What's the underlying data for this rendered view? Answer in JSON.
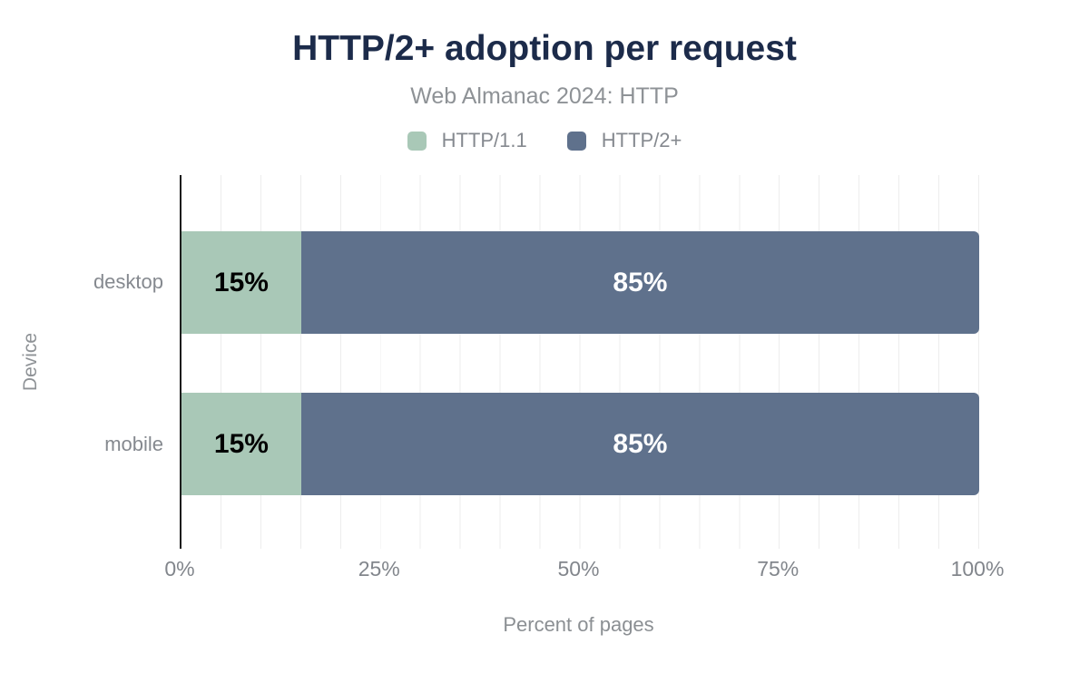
{
  "chart_data": {
    "type": "bar",
    "orientation": "horizontal",
    "stacked": true,
    "title": "HTTP/2+ adoption per request",
    "subtitle": "Web Almanac 2024: HTTP",
    "xlabel": "Percent of pages",
    "ylabel": "Device",
    "categories": [
      "desktop",
      "mobile"
    ],
    "series": [
      {
        "name": "HTTP/1.1",
        "color": "#a9c8b7",
        "label_color": "#000000",
        "values": [
          15,
          15
        ]
      },
      {
        "name": "HTTP/2+",
        "color": "#5f718c",
        "label_color": "#ffffff",
        "values": [
          85,
          85
        ]
      }
    ],
    "bar_value_labels": [
      [
        "15%",
        "85%"
      ],
      [
        "15%",
        "85%"
      ]
    ],
    "xlim": [
      0,
      100
    ],
    "xticks": [
      {
        "value": 0,
        "label": "0%"
      },
      {
        "value": 25,
        "label": "25%"
      },
      {
        "value": 50,
        "label": "50%"
      },
      {
        "value": 75,
        "label": "75%"
      },
      {
        "value": 100,
        "label": "100%"
      }
    ],
    "grid": {
      "show": true,
      "axis": "x",
      "interval_percent": 5
    },
    "legend_position": "top"
  },
  "colors": {
    "background": "#ffffff",
    "title": "#1c2b4a",
    "subtitle": "#8e9296",
    "muted_text": "#85898f",
    "axis_line": "#1c1c1c",
    "gridline": "#ededed"
  }
}
